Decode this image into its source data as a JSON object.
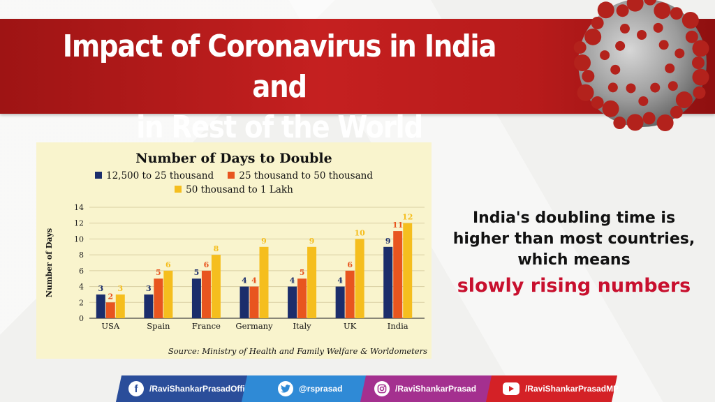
{
  "header": {
    "title_line1": "Impact of Coronavirus in India and",
    "title_line2": "in Rest of the World"
  },
  "message": {
    "line1": "India's doubling time is",
    "line2": "higher than most countries,",
    "line3": "which means",
    "accent": "slowly rising numbers"
  },
  "social": [
    {
      "handle": "/RaviShankarPrasadOfficial",
      "icon": "facebook-icon",
      "color": "#2a4d9a"
    },
    {
      "handle": "@rsprasad",
      "icon": "twitter-icon",
      "color": "#2f8ad6"
    },
    {
      "handle": "/RaviShankarPrasad",
      "icon": "instagram-icon",
      "color": "#a4308f"
    },
    {
      "handle": "/RaviShankarPrasadMP",
      "icon": "youtube-icon",
      "color": "#d42126"
    }
  ],
  "chart_data": {
    "type": "bar",
    "title": "Number of Days to Double",
    "ylabel": "Number of Days",
    "xlabel": "",
    "ylim": [
      0,
      14
    ],
    "yticks": [
      0,
      2,
      4,
      6,
      8,
      10,
      12,
      14
    ],
    "grid": true,
    "legend_placement": "top",
    "categories": [
      "USA",
      "Spain",
      "France",
      "Germany",
      "Italy",
      "UK",
      "India"
    ],
    "series": [
      {
        "name": "12,500 to 25 thousand",
        "color": "#1b2d6b",
        "values": [
          3,
          3,
          5,
          4,
          4,
          4,
          9
        ]
      },
      {
        "name": "25 thousand to 50 thousand",
        "color": "#e8551f",
        "values": [
          2,
          5,
          6,
          4,
          5,
          6,
          11
        ]
      },
      {
        "name": "50 thousand to 1 Lakh",
        "color": "#f5be1e",
        "values": [
          3,
          6,
          8,
          9,
          9,
          10,
          12
        ]
      }
    ],
    "source": "Source: Ministry of Health and Family Welfare & Worldometers"
  }
}
